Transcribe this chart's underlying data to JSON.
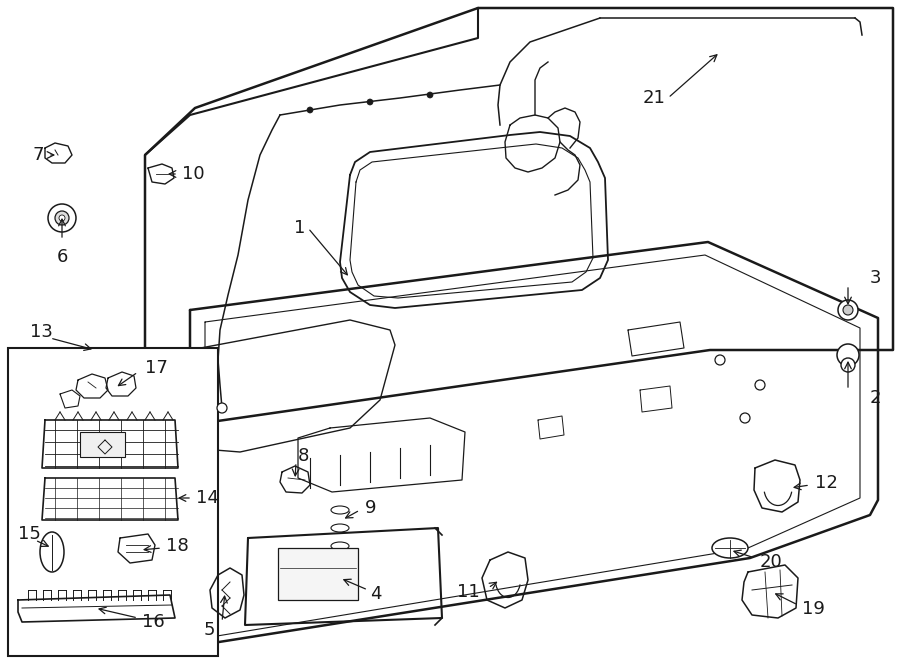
{
  "bg_color": "#ffffff",
  "line_color": "#1a1a1a",
  "lw_main": 1.8,
  "lw_med": 1.2,
  "lw_thin": 0.8,
  "fontsize_label": 13,
  "label_color": "#000000",
  "arrow_color": "#000000"
}
